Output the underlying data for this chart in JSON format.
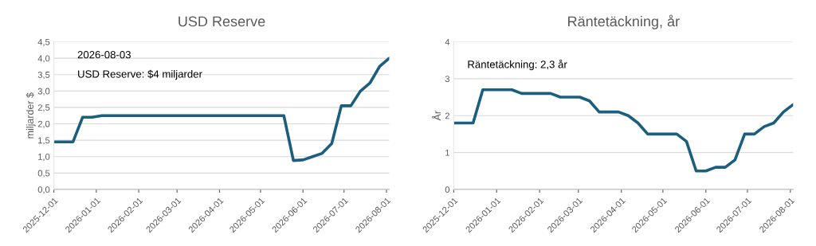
{
  "chart_data": [
    {
      "type": "line",
      "title": "USD Reserve",
      "ylabel": "miljarder $",
      "x": [
        "2025-12-01",
        "2025-12-08",
        "2025-12-15",
        "2025-12-22",
        "2025-12-29",
        "2026-01-05",
        "2026-01-12",
        "2026-01-19",
        "2026-01-26",
        "2026-02-02",
        "2026-02-09",
        "2026-02-16",
        "2026-02-23",
        "2026-03-02",
        "2026-03-09",
        "2026-03-16",
        "2026-03-23",
        "2026-03-30",
        "2026-04-06",
        "2026-04-13",
        "2026-04-20",
        "2026-04-27",
        "2026-05-04",
        "2026-05-11",
        "2026-05-18",
        "2026-05-25",
        "2026-06-01",
        "2026-06-08",
        "2026-06-15",
        "2026-06-22",
        "2026-06-29",
        "2026-07-06",
        "2026-07-13",
        "2026-07-20",
        "2026-07-27",
        "2026-08-03"
      ],
      "series": [
        {
          "color": "#1b5e7e",
          "values": [
            1.45,
            1.45,
            1.45,
            2.2,
            2.2,
            2.25,
            2.25,
            2.25,
            2.25,
            2.25,
            2.25,
            2.25,
            2.25,
            2.25,
            2.25,
            2.25,
            2.25,
            2.25,
            2.25,
            2.25,
            2.25,
            2.25,
            2.25,
            2.25,
            2.25,
            0.88,
            0.9,
            1.0,
            1.1,
            1.4,
            2.55,
            2.55,
            3.0,
            3.25,
            3.75,
            4.0
          ]
        }
      ],
      "xlim": [
        "2025-12-01",
        "2026-08-03"
      ],
      "xticks": [
        "2025-12-01",
        "2026-01-01",
        "2026-02-01",
        "2026-03-01",
        "2026-04-01",
        "2026-05-01",
        "2026-06-01",
        "2026-07-01",
        "2026-08-01"
      ],
      "ylim": [
        0,
        4.5
      ],
      "yticks": [
        {
          "value": 0,
          "label": "0,0"
        },
        {
          "value": 0.5,
          "label": "0,5"
        },
        {
          "value": 1,
          "label": "1,0"
        },
        {
          "value": 1.5,
          "label": "1,5"
        },
        {
          "value": 2,
          "label": "2,0"
        },
        {
          "value": 2.5,
          "label": "2,5"
        },
        {
          "value": 3,
          "label": "3,0"
        },
        {
          "value": 3.5,
          "label": "3,5"
        },
        {
          "value": 4,
          "label": "4,0"
        },
        {
          "value": 4.5,
          "label": "4,5"
        }
      ],
      "grid": "y",
      "marker": "none",
      "line_style": "solid",
      "annotations": [
        "2026-08-03",
        "USD Reserve: $4 miljarder"
      ]
    },
    {
      "type": "line",
      "title": "Räntetäckning, år",
      "ylabel": "År",
      "x": [
        "2025-12-01",
        "2025-12-08",
        "2025-12-15",
        "2025-12-22",
        "2025-12-29",
        "2026-01-05",
        "2026-01-12",
        "2026-01-19",
        "2026-01-26",
        "2026-02-02",
        "2026-02-09",
        "2026-02-16",
        "2026-02-23",
        "2026-03-02",
        "2026-03-09",
        "2026-03-16",
        "2026-03-23",
        "2026-03-30",
        "2026-04-06",
        "2026-04-13",
        "2026-04-20",
        "2026-04-27",
        "2026-05-04",
        "2026-05-11",
        "2026-05-18",
        "2026-05-25",
        "2026-06-01",
        "2026-06-08",
        "2026-06-15",
        "2026-06-22",
        "2026-06-29",
        "2026-07-06",
        "2026-07-13",
        "2026-07-20",
        "2026-07-27",
        "2026-08-03"
      ],
      "series": [
        {
          "color": "#1b5e7e",
          "values": [
            1.8,
            1.8,
            1.8,
            2.7,
            2.7,
            2.7,
            2.7,
            2.6,
            2.6,
            2.6,
            2.6,
            2.5,
            2.5,
            2.5,
            2.4,
            2.1,
            2.1,
            2.1,
            2.0,
            1.8,
            1.5,
            1.5,
            1.5,
            1.5,
            1.3,
            0.5,
            0.5,
            0.6,
            0.6,
            0.8,
            1.5,
            1.5,
            1.7,
            1.8,
            2.1,
            2.3
          ]
        }
      ],
      "xlim": [
        "2025-12-01",
        "2026-08-03"
      ],
      "xticks": [
        "2025-12-01",
        "2026-01-01",
        "2026-02-01",
        "2026-03-01",
        "2026-04-01",
        "2026-05-01",
        "2026-06-01",
        "2026-07-01",
        "2026-08-01"
      ],
      "ylim": [
        0,
        4
      ],
      "yticks": [
        0,
        1,
        2,
        3,
        4
      ],
      "grid": "y",
      "marker": "none",
      "line_style": "solid",
      "annotations": [
        "Räntetäckning: 2,3 år"
      ]
    }
  ]
}
